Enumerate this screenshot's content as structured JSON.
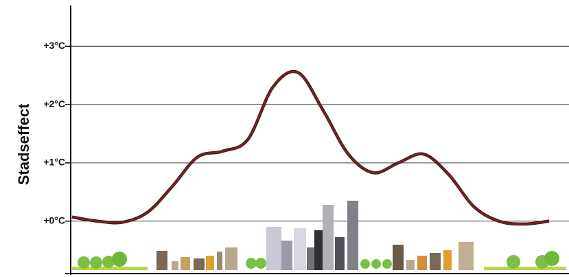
{
  "chart_data": {
    "type": "line",
    "y_label": "Stadseffect",
    "categories": [
      null,
      null,
      null,
      null,
      null,
      null,
      null,
      null,
      null,
      null,
      null,
      null,
      null,
      null,
      null,
      null,
      null,
      null,
      null,
      null
    ],
    "series": [
      {
        "color": "#8b1a1a",
        "values": [
          0.07,
          0.0,
          -0.02,
          0.15,
          0.6,
          1.1,
          1.2,
          1.4,
          2.3,
          2.55,
          1.9,
          1.15,
          0.83,
          1.0,
          1.15,
          0.8,
          0.25,
          0.0,
          -0.05,
          0.0
        ]
      }
    ],
    "ylim": [
      -0.9,
      3.7
    ],
    "yticks": [
      {
        "value": 0,
        "label": "+0°C"
      },
      {
        "value": 1,
        "label": "+1°C"
      },
      {
        "value": 2,
        "label": "+2°C"
      },
      {
        "value": 3,
        "label": "+3°C"
      }
    ],
    "grid": true
  }
}
